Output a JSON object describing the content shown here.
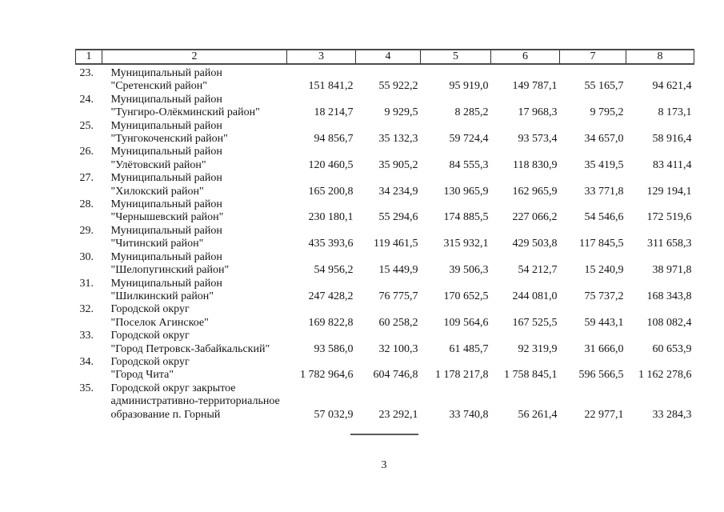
{
  "page": {
    "number": "3"
  },
  "table": {
    "header_cols": [
      "1",
      "2",
      "3",
      "4",
      "5",
      "6",
      "7",
      "8"
    ],
    "rows": [
      {
        "num": "23.",
        "name_lines": [
          "Муниципальный район",
          "\"Сретенский район\""
        ],
        "values": [
          "151 841,2",
          "55 922,2",
          "95 919,0",
          "149 787,1",
          "55 165,7",
          "94 621,4"
        ]
      },
      {
        "num": "24.",
        "name_lines": [
          "Муниципальный район",
          "\"Тунгиро-Олёкминский район\""
        ],
        "values": [
          "18 214,7",
          "9 929,5",
          "8 285,2",
          "17 968,3",
          "9 795,2",
          "8 173,1"
        ]
      },
      {
        "num": "25.",
        "name_lines": [
          "Муниципальный район",
          "\"Тунгокоченский район\""
        ],
        "values": [
          "94 856,7",
          "35 132,3",
          "59 724,4",
          "93 573,4",
          "34 657,0",
          "58 916,4"
        ]
      },
      {
        "num": "26.",
        "name_lines": [
          "Муниципальный район",
          "\"Улётовский район\""
        ],
        "values": [
          "120 460,5",
          "35 905,2",
          "84 555,3",
          "118 830,9",
          "35 419,5",
          "83 411,4"
        ]
      },
      {
        "num": "27.",
        "name_lines": [
          "Муниципальный район",
          "\"Хилокский район\""
        ],
        "values": [
          "165 200,8",
          "34 234,9",
          "130 965,9",
          "162 965,9",
          "33 771,8",
          "129 194,1"
        ]
      },
      {
        "num": "28.",
        "name_lines": [
          "Муниципальный район",
          "\"Чернышевский район\""
        ],
        "values": [
          "230 180,1",
          "55 294,6",
          "174 885,5",
          "227 066,2",
          "54 546,6",
          "172 519,6"
        ]
      },
      {
        "num": "29.",
        "name_lines": [
          "Муниципальный район",
          "\"Читинский район\""
        ],
        "values": [
          "435 393,6",
          "119 461,5",
          "315 932,1",
          "429 503,8",
          "117 845,5",
          "311 658,3"
        ]
      },
      {
        "num": "30.",
        "name_lines": [
          "Муниципальный район",
          "\"Шелопугинский район\""
        ],
        "values": [
          "54 956,2",
          "15 449,9",
          "39 506,3",
          "54 212,7",
          "15 240,9",
          "38 971,8"
        ]
      },
      {
        "num": "31.",
        "name_lines": [
          "Муниципальный район",
          "\"Шилкинский район\""
        ],
        "values": [
          "247 428,2",
          "76 775,7",
          "170 652,5",
          "244 081,0",
          "75 737,2",
          "168 343,8"
        ]
      },
      {
        "num": "32.",
        "name_lines": [
          "Городской округ",
          "\"Поселок Агинское\""
        ],
        "values": [
          "169 822,8",
          "60 258,2",
          "109 564,6",
          "167 525,5",
          "59 443,1",
          "108 082,4"
        ]
      },
      {
        "num": "33.",
        "name_lines": [
          "Городской округ",
          "\"Город Петровск-Забайкальский\""
        ],
        "values": [
          "93 586,0",
          "32 100,3",
          "61 485,7",
          "92 319,9",
          "31 666,0",
          "60 653,9"
        ]
      },
      {
        "num": "34.",
        "name_lines": [
          "Городской округ",
          "\"Город Чита\""
        ],
        "values": [
          "1 782 964,6",
          "604 746,8",
          "1 178 217,8",
          "1 758 845,1",
          "596 566,5",
          "1 162 278,6"
        ]
      },
      {
        "num": "35.",
        "name_lines": [
          "Городской округ закрытое",
          "административно-территориальное",
          "образование п. Горный"
        ],
        "values": [
          "57 032,9",
          "23 292,1",
          "33 740,8",
          "56 261,4",
          "22 977,1",
          "33 284,3"
        ]
      }
    ]
  }
}
